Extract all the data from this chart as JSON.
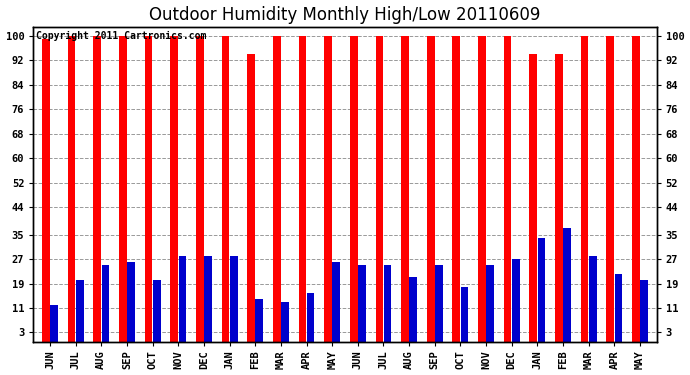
{
  "title": "Outdoor Humidity Monthly High/Low 20110609",
  "copyright": "Copyright 2011 Cartronics.com",
  "months": [
    "JUN",
    "JUL",
    "AUG",
    "SEP",
    "OCT",
    "NOV",
    "DEC",
    "JAN",
    "FEB",
    "MAR",
    "APR",
    "MAY",
    "JUN",
    "JUL",
    "AUG",
    "SEP",
    "OCT",
    "NOV",
    "DEC",
    "JAN",
    "FEB",
    "MAR",
    "APR",
    "MAY"
  ],
  "highs": [
    99,
    100,
    100,
    100,
    100,
    100,
    100,
    100,
    94,
    100,
    100,
    100,
    100,
    100,
    100,
    100,
    100,
    100,
    100,
    94,
    94,
    100,
    100,
    100
  ],
  "lows": [
    12,
    20,
    25,
    26,
    20,
    28,
    28,
    28,
    14,
    13,
    16,
    26,
    25,
    25,
    21,
    25,
    18,
    25,
    27,
    34,
    37,
    28,
    22,
    20
  ],
  "high_color": "#ff0000",
  "low_color": "#0000cc",
  "background_color": "#ffffff",
  "ylim": [
    0,
    103
  ],
  "yticks": [
    3,
    11,
    19,
    27,
    35,
    44,
    52,
    60,
    68,
    76,
    84,
    92,
    100
  ],
  "grid_color": "#999999",
  "title_fontsize": 12,
  "tick_fontsize": 7.5,
  "copyright_fontsize": 7
}
